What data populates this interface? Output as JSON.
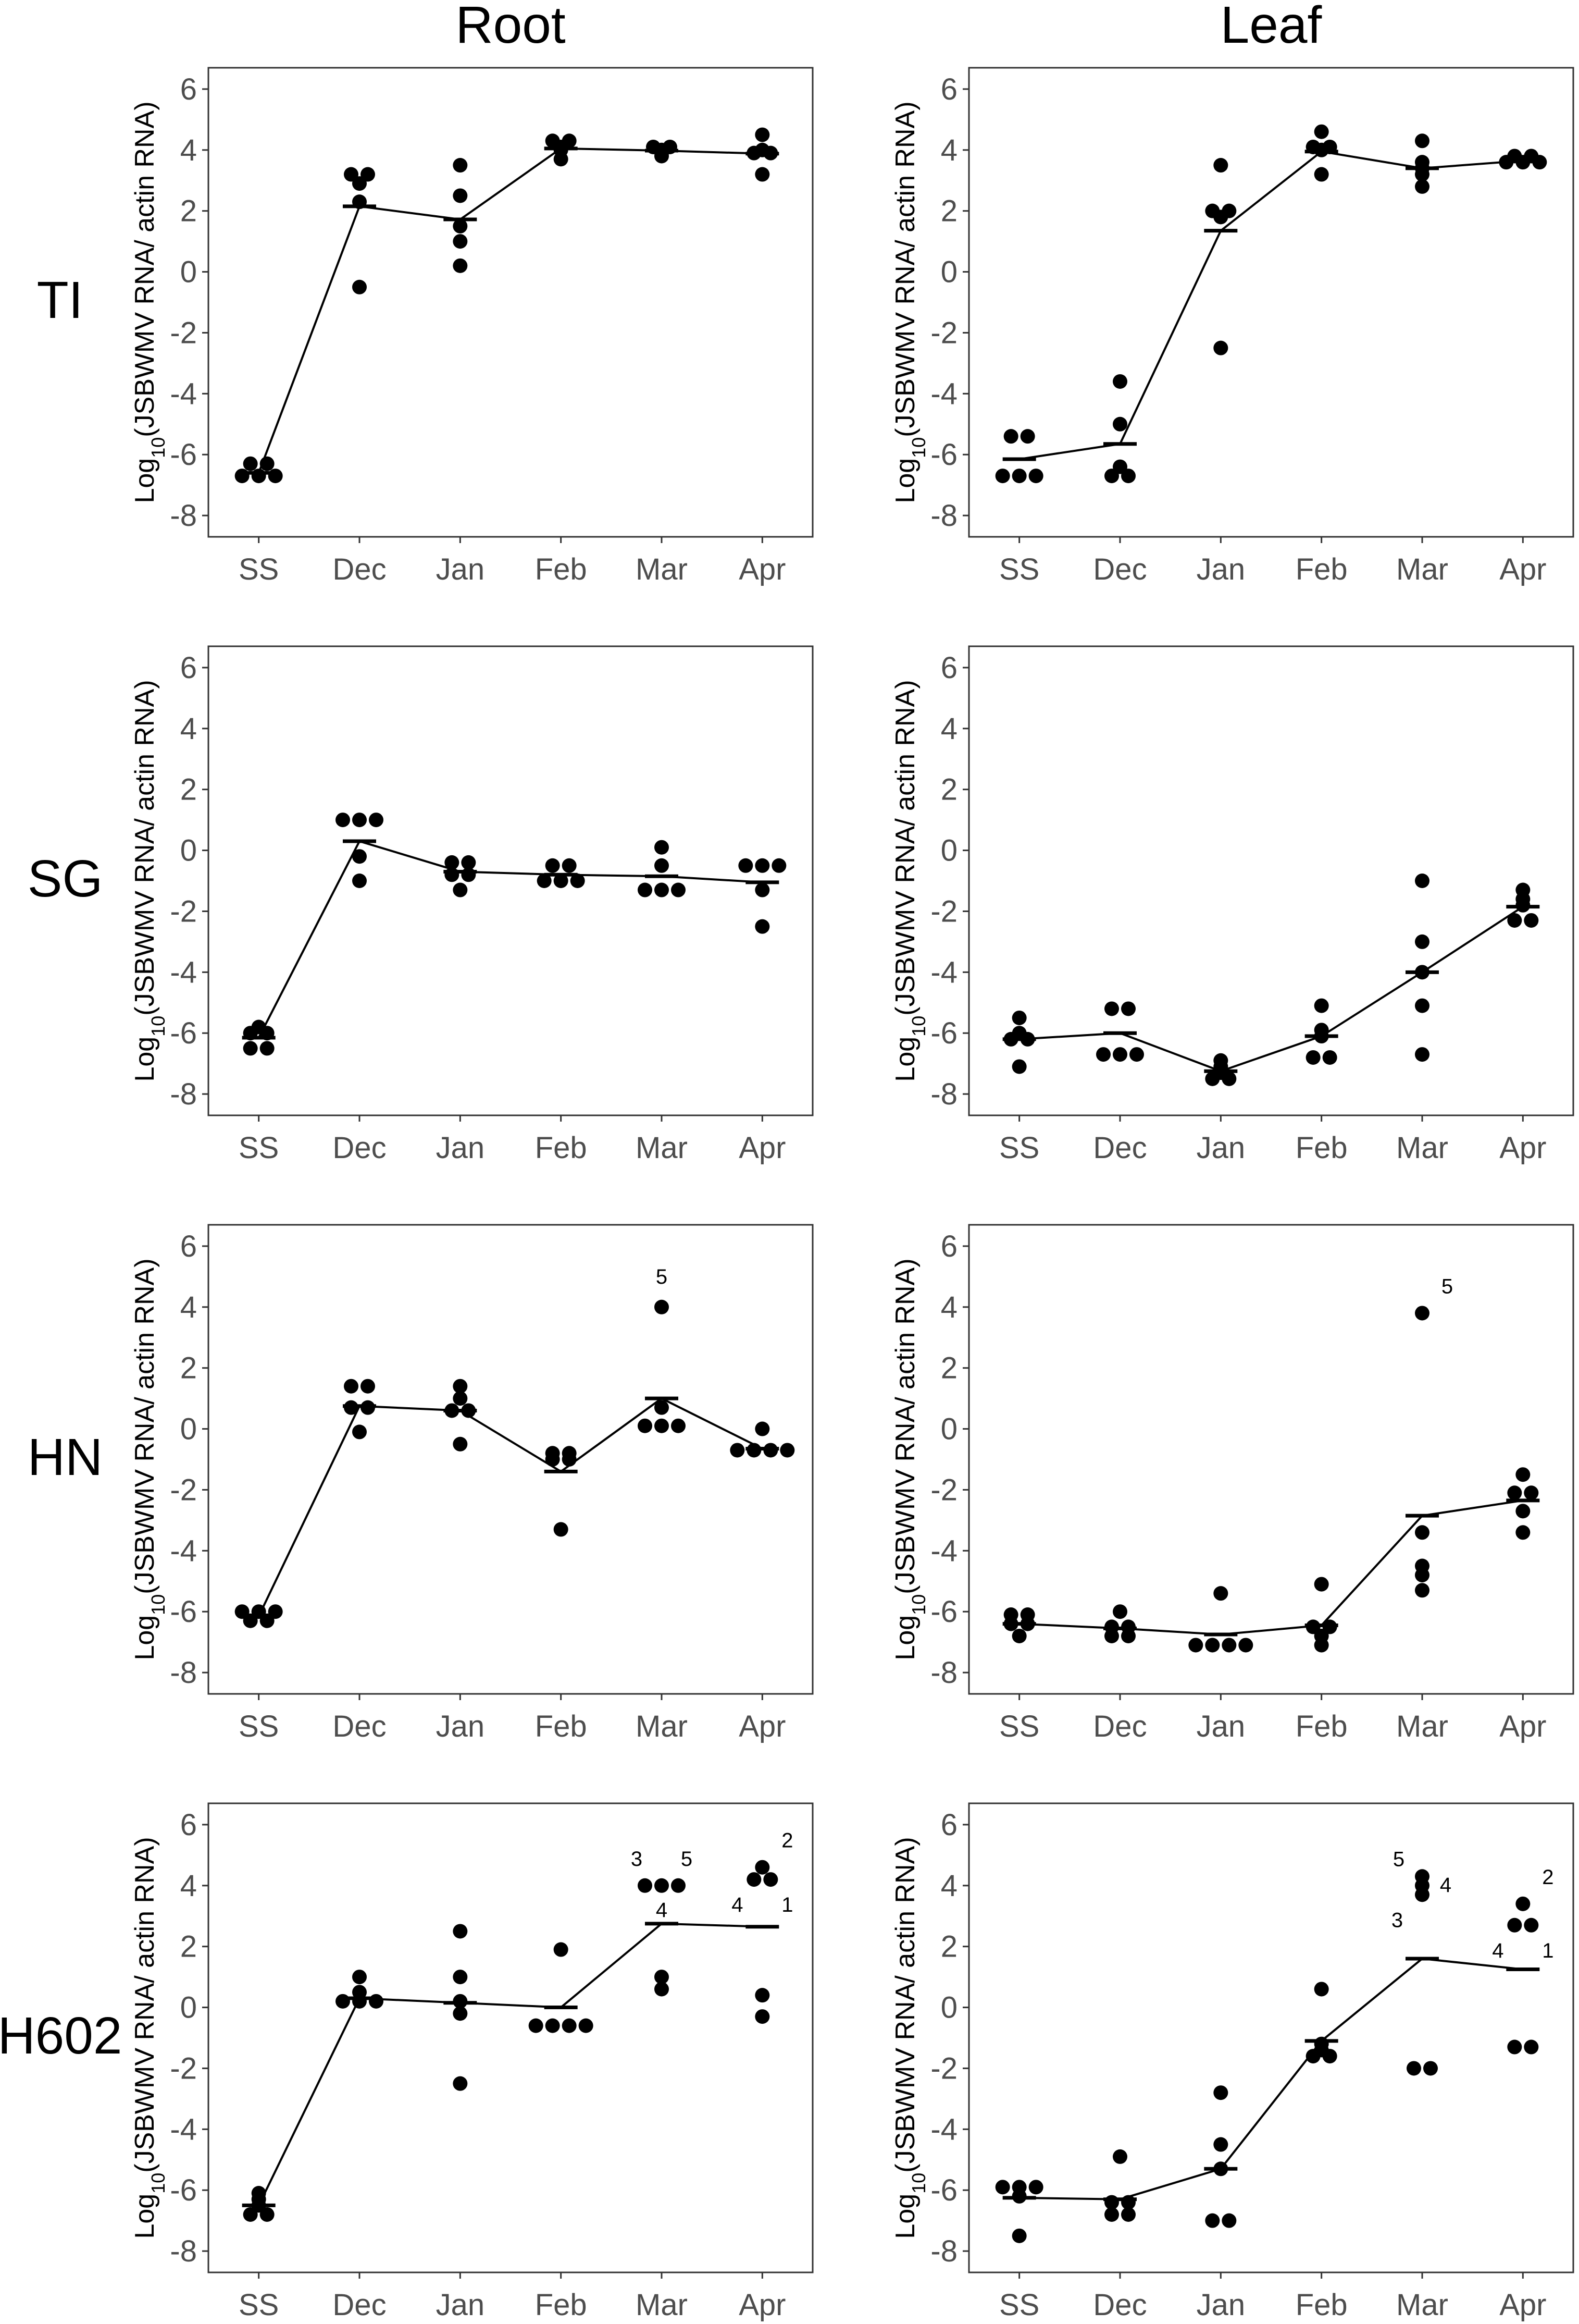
{
  "figure": {
    "column_titles": [
      "Root",
      "Leaf"
    ],
    "row_labels": [
      "TI",
      "SG",
      "HN",
      "H602"
    ]
  },
  "chart_data": [
    {
      "type": "scatter",
      "panel": "TI Root",
      "row": "TI",
      "column": "Root",
      "categories": [
        "SS",
        "Dec",
        "Jan",
        "Feb",
        "Mar",
        "Apr"
      ],
      "xlabel": "",
      "ylabel": "Log10(JSBWMV RNA/ actin RNA)",
      "ylim": [
        -8.7,
        6.7
      ],
      "yticks": [
        6,
        4,
        2,
        0,
        -2,
        -4,
        -6,
        -8
      ],
      "points": [
        [
          -6.3,
          -6.3,
          -6.7,
          -6.7,
          -6.7
        ],
        [
          3.2,
          3.2,
          2.9,
          2.3,
          -0.5
        ],
        [
          3.5,
          2.5,
          1.5,
          1.0,
          0.2
        ],
        [
          4.3,
          4.3,
          4.1,
          4.0,
          3.7
        ],
        [
          4.1,
          4.1,
          4.0,
          3.9,
          3.8
        ],
        [
          4.5,
          4.0,
          3.9,
          3.9,
          3.2
        ]
      ],
      "means": [
        -6.6,
        2.15,
        1.72,
        4.05,
        3.98,
        3.88
      ],
      "annotations": []
    },
    {
      "type": "scatter",
      "panel": "TI Leaf",
      "row": "TI",
      "column": "Leaf",
      "categories": [
        "SS",
        "Dec",
        "Jan",
        "Feb",
        "Mar",
        "Apr"
      ],
      "xlabel": "",
      "ylabel": "Log10(JSBWMV RNA/ actin RNA)",
      "ylim": [
        -8.7,
        6.7
      ],
      "yticks": [
        6,
        4,
        2,
        0,
        -2,
        -4,
        -6,
        -8
      ],
      "points": [
        [
          -5.4,
          -5.4,
          -6.7,
          -6.7,
          -6.7
        ],
        [
          -3.6,
          -5.0,
          -6.4,
          -6.7,
          -6.7
        ],
        [
          3.5,
          2.0,
          2.0,
          1.8,
          -2.5
        ],
        [
          4.6,
          4.1,
          4.1,
          4.0,
          3.2
        ],
        [
          4.3,
          3.6,
          3.4,
          3.2,
          2.8
        ],
        [
          3.8,
          3.8,
          3.6,
          3.6,
          3.6
        ]
      ],
      "means": [
        -6.15,
        -5.65,
        1.35,
        3.95,
        3.4,
        3.65
      ],
      "annotations": []
    },
    {
      "type": "scatter",
      "panel": "SG Root",
      "row": "SG",
      "column": "Root",
      "categories": [
        "SS",
        "Dec",
        "Jan",
        "Feb",
        "Mar",
        "Apr"
      ],
      "xlabel": "",
      "ylabel": "Log10(JSBWMV RNA/ actin RNA)",
      "ylim": [
        -8.7,
        6.7
      ],
      "yticks": [
        6,
        4,
        2,
        0,
        -2,
        -4,
        -6,
        -8
      ],
      "points": [
        [
          -5.8,
          -6.0,
          -6.0,
          -6.5,
          -6.5
        ],
        [
          1.0,
          1.0,
          1.0,
          -0.2,
          -1.0
        ],
        [
          -0.4,
          -0.4,
          -0.8,
          -0.8,
          -1.3
        ],
        [
          -0.5,
          -0.5,
          -1.0,
          -1.0,
          -1.0
        ],
        [
          0.1,
          -0.5,
          -1.3,
          -1.3,
          -1.3
        ],
        [
          -0.5,
          -0.5,
          -0.5,
          -1.3,
          -2.5
        ]
      ],
      "means": [
        -6.15,
        0.3,
        -0.7,
        -0.8,
        -0.85,
        -1.05
      ],
      "annotations": []
    },
    {
      "type": "scatter",
      "panel": "SG Leaf",
      "row": "SG",
      "column": "Leaf",
      "categories": [
        "SS",
        "Dec",
        "Jan",
        "Feb",
        "Mar",
        "Apr"
      ],
      "xlabel": "",
      "ylabel": "Log10(JSBWMV RNA/ actin RNA)",
      "ylim": [
        -8.7,
        6.7
      ],
      "yticks": [
        6,
        4,
        2,
        0,
        -2,
        -4,
        -6,
        -8
      ],
      "points": [
        [
          -5.5,
          -6.0,
          -6.2,
          -6.2,
          -7.1
        ],
        [
          -5.2,
          -5.2,
          -6.7,
          -6.7,
          -6.7
        ],
        [
          -6.9,
          -7.1,
          -7.3,
          -7.5,
          -7.5
        ],
        [
          -5.1,
          -5.9,
          -6.1,
          -6.8,
          -6.8
        ],
        [
          -1.0,
          -3.0,
          -4.0,
          -5.1,
          -6.7
        ],
        [
          -1.3,
          -1.6,
          -1.8,
          -2.3,
          -2.3
        ]
      ],
      "means": [
        -6.2,
        -6.0,
        -7.25,
        -6.1,
        -4.0,
        -1.85
      ],
      "annotations": []
    },
    {
      "type": "scatter",
      "panel": "HN Root",
      "row": "HN",
      "column": "Root",
      "categories": [
        "SS",
        "Dec",
        "Jan",
        "Feb",
        "Mar",
        "Apr"
      ],
      "xlabel": "",
      "ylabel": "Log10(JSBWMV RNA/ actin RNA)",
      "ylim": [
        -8.7,
        6.7
      ],
      "yticks": [
        6,
        4,
        2,
        0,
        -2,
        -4,
        -6,
        -8
      ],
      "points": [
        [
          -6.0,
          -6.0,
          -6.0,
          -6.3,
          -6.3
        ],
        [
          1.4,
          1.4,
          0.7,
          0.7,
          -0.1
        ],
        [
          1.4,
          1.0,
          0.6,
          0.6,
          -0.5
        ],
        [
          -0.8,
          -0.8,
          -1.0,
          -1.0,
          -3.3
        ],
        [
          4.0,
          0.7,
          0.1,
          0.1,
          0.1
        ],
        [
          0.0,
          -0.7,
          -0.7,
          -0.7,
          -0.7
        ]
      ],
      "means": [
        -6.15,
        0.75,
        0.6,
        -1.4,
        1.0,
        -0.65
      ],
      "annotations": [
        {
          "text": "5",
          "category": "Mar",
          "y": 4.0,
          "pos": "above"
        }
      ]
    },
    {
      "type": "scatter",
      "panel": "HN Leaf",
      "row": "HN",
      "column": "Leaf",
      "categories": [
        "SS",
        "Dec",
        "Jan",
        "Feb",
        "Mar",
        "Apr"
      ],
      "xlabel": "",
      "ylabel": "Log10(JSBWMV RNA/ actin RNA)",
      "ylim": [
        -8.7,
        6.7
      ],
      "yticks": [
        6,
        4,
        2,
        0,
        -2,
        -4,
        -6,
        -8
      ],
      "points": [
        [
          -6.1,
          -6.1,
          -6.4,
          -6.4,
          -6.8
        ],
        [
          -6.0,
          -6.5,
          -6.5,
          -6.8,
          -6.8
        ],
        [
          -5.4,
          -7.1,
          -7.1,
          -7.1,
          -7.1
        ],
        [
          -5.1,
          -6.5,
          -6.5,
          -6.8,
          -7.1
        ],
        [
          3.8,
          -3.4,
          -4.5,
          -4.8,
          -5.3
        ],
        [
          -1.5,
          -2.1,
          -2.1,
          -2.7,
          -3.4
        ]
      ],
      "means": [
        -6.4,
        -6.55,
        -6.75,
        -6.45,
        -2.85,
        -2.35
      ],
      "annotations": [
        {
          "text": "5",
          "category": "Mar",
          "y": 3.8,
          "pos": "above-right"
        }
      ]
    },
    {
      "type": "scatter",
      "panel": "H602 Root",
      "row": "H602",
      "column": "Root",
      "categories": [
        "SS",
        "Dec",
        "Jan",
        "Feb",
        "Mar",
        "Apr"
      ],
      "xlabel": "",
      "ylabel": "Log10(JSBWMV RNA/ actin RNA)",
      "ylim": [
        -8.7,
        6.7
      ],
      "yticks": [
        6,
        4,
        2,
        0,
        -2,
        -4,
        -6,
        -8
      ],
      "points": [
        [
          -6.1,
          -6.3,
          -6.5,
          -6.8,
          -6.8
        ],
        [
          1.0,
          0.5,
          0.2,
          0.2,
          0.2
        ],
        [
          2.5,
          1.0,
          0.2,
          -0.2,
          -2.5
        ],
        [
          1.9,
          -0.6,
          -0.6,
          -0.6,
          -0.6
        ],
        [
          4.0,
          4.0,
          4.0,
          1.0,
          0.6
        ],
        [
          4.6,
          4.2,
          4.2,
          0.4,
          -0.3
        ]
      ],
      "means": [
        -6.5,
        0.3,
        0.15,
        0.0,
        2.75,
        2.65
      ],
      "annotations": [
        {
          "text": "3",
          "category": "Mar",
          "y": 4.0,
          "pos": "above-left"
        },
        {
          "text": "5",
          "category": "Mar",
          "y": 4.0,
          "pos": "above-right"
        },
        {
          "text": "4",
          "category": "Mar",
          "y": 4.0,
          "pos": "below"
        },
        {
          "text": "2",
          "category": "Apr",
          "y": 4.6,
          "pos": "above-right"
        },
        {
          "text": "4",
          "category": "Apr",
          "y": 4.2,
          "pos": "below-left"
        },
        {
          "text": "1",
          "category": "Apr",
          "y": 4.2,
          "pos": "below-right"
        }
      ]
    },
    {
      "type": "scatter",
      "panel": "H602 Leaf",
      "row": "H602",
      "column": "Leaf",
      "categories": [
        "SS",
        "Dec",
        "Jan",
        "Feb",
        "Mar",
        "Apr"
      ],
      "xlabel": "",
      "ylabel": "Log10(JSBWMV RNA/ actin RNA)",
      "ylim": [
        -8.7,
        6.7
      ],
      "yticks": [
        6,
        4,
        2,
        0,
        -2,
        -4,
        -6,
        -8
      ],
      "points": [
        [
          -5.9,
          -5.9,
          -5.9,
          -6.2,
          -7.5
        ],
        [
          -4.9,
          -6.4,
          -6.4,
          -6.8,
          -6.8
        ],
        [
          -2.8,
          -4.5,
          -5.3,
          -7.0,
          -7.0
        ],
        [
          0.6,
          -1.2,
          -1.4,
          -1.6,
          -1.6
        ],
        [
          4.3,
          4.0,
          3.7,
          -2.0,
          -2.0
        ],
        [
          3.4,
          2.7,
          2.7,
          -1.3,
          -1.3
        ]
      ],
      "means": [
        -6.25,
        -6.3,
        -5.3,
        -1.1,
        1.6,
        1.25
      ],
      "annotations": [
        {
          "text": "5",
          "category": "Mar",
          "y": 4.3,
          "pos": "left"
        },
        {
          "text": "4",
          "category": "Mar",
          "y": 4.0,
          "pos": "right"
        },
        {
          "text": "3",
          "category": "Mar",
          "y": 3.7,
          "pos": "below-left"
        },
        {
          "text": "2",
          "category": "Apr",
          "y": 3.4,
          "pos": "above-right"
        },
        {
          "text": "4",
          "category": "Apr",
          "y": 2.7,
          "pos": "below-left"
        },
        {
          "text": "1",
          "category": "Apr",
          "y": 2.7,
          "pos": "below-right"
        }
      ]
    }
  ]
}
